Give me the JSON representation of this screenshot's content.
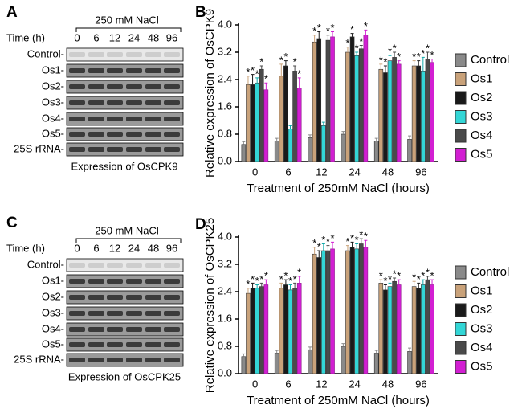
{
  "blots": [
    {
      "letter": "A",
      "treatment": "250 mM NaCl",
      "time_label": "Time (h)",
      "times": [
        "0",
        "6",
        "12",
        "24",
        "48",
        "96"
      ],
      "rows": [
        "Control-",
        "Os1-",
        "Os2-",
        "Os3-",
        "Os4-",
        "Os5-",
        "25S rRNA-"
      ],
      "caption": "Expression of OsCPK9"
    },
    {
      "letter": "C",
      "treatment": "250 mM NaCl",
      "time_label": "Time (h)",
      "times": [
        "0",
        "6",
        "12",
        "24",
        "48",
        "96"
      ],
      "rows": [
        "Control-",
        "Os1-",
        "Os2-",
        "Os3-",
        "Os4-",
        "Os5-",
        "25S rRNA-"
      ],
      "caption": "Expression of OsCPK25"
    }
  ],
  "chart_data": [
    {
      "type": "bar",
      "panel": "B",
      "y_label": "Relative expression of OsCPK9",
      "x_label": "Treatment of 250mM NaCl (hours)",
      "categories": [
        "0",
        "6",
        "12",
        "24",
        "48",
        "96"
      ],
      "ylim": [
        0,
        4
      ],
      "yticks": [
        {
          "value": 0,
          "label": "0.0"
        },
        0.8,
        1.6,
        2.4,
        3.2,
        {
          "value": 4,
          "label": "4.0"
        }
      ],
      "series": [
        {
          "name": "Control",
          "color": "#8a8a8a",
          "values": [
            0.5,
            0.6,
            0.7,
            0.8,
            0.6,
            0.65
          ],
          "errors": [
            0.08,
            0.08,
            0.08,
            0.08,
            0.08,
            0.1
          ]
        },
        {
          "name": "Os1",
          "color": "#c9a27a",
          "values": [
            2.25,
            2.5,
            3.5,
            3.2,
            2.7,
            2.8
          ],
          "errors": [
            0.25,
            0.35,
            0.2,
            0.15,
            0.15,
            0.15
          ],
          "significance": [
            "*",
            "*",
            "*",
            "*",
            "*",
            "*"
          ]
        },
        {
          "name": "Os2",
          "color": "#1a1a1a",
          "values": [
            2.25,
            2.8,
            3.6,
            3.65,
            2.6,
            2.8
          ],
          "errors": [
            0.3,
            0.15,
            0.2,
            0.1,
            0.2,
            0.15
          ],
          "significance": [
            "*",
            "*",
            "*",
            "*",
            "*",
            "*"
          ]
        },
        {
          "name": "Os3",
          "color": "#33d6d6",
          "values": [
            2.3,
            0.95,
            1.05,
            3.1,
            2.95,
            2.65
          ],
          "errors": [
            0.15,
            0.1,
            0.1,
            0.1,
            0.15,
            0.4
          ],
          "significance": [
            "*",
            null,
            null,
            "*",
            "*",
            "*"
          ]
        },
        {
          "name": "Os4",
          "color": "#4a4a4a",
          "values": [
            2.7,
            2.65,
            3.55,
            3.3,
            3.05,
            3.0
          ],
          "errors": [
            0.1,
            0.15,
            0.15,
            0.1,
            0.15,
            0.2
          ],
          "significance": [
            "*",
            "*",
            "*",
            "*",
            "*",
            "*"
          ]
        },
        {
          "name": "Os5",
          "color": "#d21fd2",
          "values": [
            2.1,
            2.15,
            3.65,
            3.7,
            2.85,
            2.9
          ],
          "errors": [
            0.2,
            0.3,
            0.15,
            0.15,
            0.1,
            0.1
          ],
          "significance": [
            "*",
            "*",
            "*",
            "*",
            "*",
            "*"
          ]
        }
      ]
    },
    {
      "type": "bar",
      "panel": "D",
      "y_label": "Relative expression of OsCPK25",
      "x_label": "Treatment of 250mM NaCl (hours)",
      "categories": [
        "0",
        "6",
        "12",
        "24",
        "48",
        "96"
      ],
      "ylim": [
        0,
        4
      ],
      "yticks": [
        {
          "value": 0,
          "label": "0.0"
        },
        0.8,
        1.6,
        2.4,
        3.2,
        {
          "value": 4,
          "label": "4.0"
        }
      ],
      "series": [
        {
          "name": "Control",
          "color": "#8a8a8a",
          "values": [
            0.5,
            0.6,
            0.7,
            0.8,
            0.6,
            0.65
          ],
          "errors": [
            0.08,
            0.08,
            0.08,
            0.08,
            0.08,
            0.1
          ]
        },
        {
          "name": "Os1",
          "color": "#c9a27a",
          "values": [
            2.35,
            2.5,
            3.5,
            3.6,
            2.65,
            2.55
          ],
          "errors": [
            0.15,
            0.15,
            0.2,
            0.15,
            0.1,
            0.15
          ],
          "significance": [
            "*",
            "*",
            "*",
            "*",
            "*",
            "*"
          ]
        },
        {
          "name": "Os2",
          "color": "#1a1a1a",
          "values": [
            2.5,
            2.6,
            3.4,
            3.7,
            2.45,
            2.5
          ],
          "errors": [
            0.15,
            0.15,
            0.2,
            0.15,
            0.15,
            0.15
          ],
          "significance": [
            "*",
            "*",
            "*",
            "*",
            "*",
            "*"
          ]
        },
        {
          "name": "Os3",
          "color": "#33d6d6",
          "values": [
            2.5,
            2.45,
            3.6,
            3.65,
            2.55,
            2.6
          ],
          "errors": [
            0.1,
            0.15,
            0.2,
            0.15,
            0.1,
            0.15
          ],
          "significance": [
            "*",
            "*",
            "*",
            "*",
            "*",
            "*"
          ]
        },
        {
          "name": "Os4",
          "color": "#4a4a4a",
          "values": [
            2.55,
            2.5,
            3.6,
            3.8,
            2.7,
            2.75
          ],
          "errors": [
            0.1,
            0.15,
            0.15,
            0.15,
            0.1,
            0.1
          ],
          "significance": [
            "*",
            "*",
            "*",
            "*",
            "*",
            "*"
          ]
        },
        {
          "name": "Os5",
          "color": "#d21fd2",
          "values": [
            2.6,
            2.65,
            3.65,
            3.7,
            2.6,
            2.6
          ],
          "errors": [
            0.15,
            0.2,
            0.2,
            0.2,
            0.15,
            0.15
          ],
          "significance": [
            "*",
            "*",
            "*",
            "*",
            "*",
            "*"
          ]
        }
      ]
    }
  ]
}
